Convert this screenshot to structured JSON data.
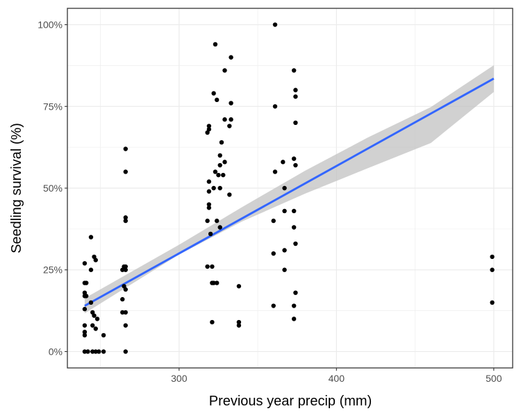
{
  "chart_data": {
    "type": "scatter",
    "title": "",
    "xlabel": "Previous year precip (mm)",
    "ylabel": "Seedling survival (%)",
    "xlim": [
      229,
      512
    ],
    "ylim": [
      -0.05,
      1.05
    ],
    "x_ticks": [
      {
        "value": 300,
        "label": "300"
      },
      {
        "value": 400,
        "label": "400"
      },
      {
        "value": 500,
        "label": "500"
      }
    ],
    "y_ticks": [
      {
        "value": 0,
        "label": "0%"
      },
      {
        "value": 0.25,
        "label": "25%"
      },
      {
        "value": 0.5,
        "label": "50%"
      },
      {
        "value": 0.75,
        "label": "75%"
      },
      {
        "value": 1.0,
        "label": "100%"
      }
    ],
    "grid": true,
    "legend": "none",
    "colors": {
      "points": "#000000",
      "trend_line": "#3366ff",
      "confidence_band": "#bebebe",
      "grid": "#ebebeb",
      "panel_border": "#333333"
    },
    "points": [
      {
        "x": 240,
        "y": 0.27
      },
      {
        "x": 240,
        "y": 0.21
      },
      {
        "x": 240,
        "y": 0.18
      },
      {
        "x": 240,
        "y": 0.17
      },
      {
        "x": 240,
        "y": 0.13
      },
      {
        "x": 240,
        "y": 0.08
      },
      {
        "x": 240,
        "y": 0.06
      },
      {
        "x": 240,
        "y": 0.05
      },
      {
        "x": 240,
        "y": 0.0
      },
      {
        "x": 241,
        "y": 0.21
      },
      {
        "x": 241,
        "y": 0.17
      },
      {
        "x": 242,
        "y": 0.0
      },
      {
        "x": 244,
        "y": 0.35
      },
      {
        "x": 244,
        "y": 0.25
      },
      {
        "x": 244,
        "y": 0.15
      },
      {
        "x": 245,
        "y": 0.12
      },
      {
        "x": 245,
        "y": 0.08
      },
      {
        "x": 245,
        "y": 0.0
      },
      {
        "x": 246,
        "y": 0.29
      },
      {
        "x": 246,
        "y": 0.11
      },
      {
        "x": 247,
        "y": 0.28
      },
      {
        "x": 247,
        "y": 0.07
      },
      {
        "x": 247,
        "y": 0.0
      },
      {
        "x": 248,
        "y": 0.1
      },
      {
        "x": 249,
        "y": 0.0
      },
      {
        "x": 252,
        "y": 0.05
      },
      {
        "x": 252,
        "y": 0.0
      },
      {
        "x": 264,
        "y": 0.25
      },
      {
        "x": 264,
        "y": 0.16
      },
      {
        "x": 264,
        "y": 0.12
      },
      {
        "x": 265,
        "y": 0.26
      },
      {
        "x": 265,
        "y": 0.2
      },
      {
        "x": 266,
        "y": 0.62
      },
      {
        "x": 266,
        "y": 0.55
      },
      {
        "x": 266,
        "y": 0.41
      },
      {
        "x": 266,
        "y": 0.4
      },
      {
        "x": 266,
        "y": 0.26
      },
      {
        "x": 266,
        "y": 0.25
      },
      {
        "x": 266,
        "y": 0.19
      },
      {
        "x": 266,
        "y": 0.12
      },
      {
        "x": 266,
        "y": 0.08
      },
      {
        "x": 266,
        "y": 0.0
      },
      {
        "x": 318,
        "y": 0.67
      },
      {
        "x": 318,
        "y": 0.4
      },
      {
        "x": 318,
        "y": 0.26
      },
      {
        "x": 319,
        "y": 0.69
      },
      {
        "x": 319,
        "y": 0.68
      },
      {
        "x": 319,
        "y": 0.52
      },
      {
        "x": 319,
        "y": 0.49
      },
      {
        "x": 319,
        "y": 0.45
      },
      {
        "x": 319,
        "y": 0.44
      },
      {
        "x": 320,
        "y": 0.36
      },
      {
        "x": 321,
        "y": 0.26
      },
      {
        "x": 321,
        "y": 0.21
      },
      {
        "x": 321,
        "y": 0.09
      },
      {
        "x": 322,
        "y": 0.79
      },
      {
        "x": 322,
        "y": 0.5
      },
      {
        "x": 322,
        "y": 0.21
      },
      {
        "x": 323,
        "y": 0.94
      },
      {
        "x": 323,
        "y": 0.55
      },
      {
        "x": 324,
        "y": 0.77
      },
      {
        "x": 324,
        "y": 0.4
      },
      {
        "x": 324,
        "y": 0.21
      },
      {
        "x": 325,
        "y": 0.54
      },
      {
        "x": 326,
        "y": 0.6
      },
      {
        "x": 326,
        "y": 0.57
      },
      {
        "x": 326,
        "y": 0.5
      },
      {
        "x": 326,
        "y": 0.38
      },
      {
        "x": 327,
        "y": 0.64
      },
      {
        "x": 328,
        "y": 0.54
      },
      {
        "x": 329,
        "y": 0.86
      },
      {
        "x": 329,
        "y": 0.71
      },
      {
        "x": 329,
        "y": 0.58
      },
      {
        "x": 332,
        "y": 0.69
      },
      {
        "x": 332,
        "y": 0.48
      },
      {
        "x": 333,
        "y": 0.9
      },
      {
        "x": 333,
        "y": 0.76
      },
      {
        "x": 333,
        "y": 0.71
      },
      {
        "x": 338,
        "y": 0.2
      },
      {
        "x": 338,
        "y": 0.09
      },
      {
        "x": 338,
        "y": 0.08
      },
      {
        "x": 360,
        "y": 0.4
      },
      {
        "x": 360,
        "y": 0.3
      },
      {
        "x": 360,
        "y": 0.14
      },
      {
        "x": 361,
        "y": 1.0
      },
      {
        "x": 361,
        "y": 0.75
      },
      {
        "x": 361,
        "y": 0.55
      },
      {
        "x": 366,
        "y": 0.58
      },
      {
        "x": 367,
        "y": 0.5
      },
      {
        "x": 367,
        "y": 0.43
      },
      {
        "x": 367,
        "y": 0.31
      },
      {
        "x": 367,
        "y": 0.25
      },
      {
        "x": 373,
        "y": 0.86
      },
      {
        "x": 373,
        "y": 0.59
      },
      {
        "x": 373,
        "y": 0.43
      },
      {
        "x": 373,
        "y": 0.38
      },
      {
        "x": 373,
        "y": 0.14
      },
      {
        "x": 373,
        "y": 0.1
      },
      {
        "x": 374,
        "y": 0.8
      },
      {
        "x": 374,
        "y": 0.78
      },
      {
        "x": 374,
        "y": 0.7
      },
      {
        "x": 374,
        "y": 0.57
      },
      {
        "x": 374,
        "y": 0.33
      },
      {
        "x": 374,
        "y": 0.18
      },
      {
        "x": 499,
        "y": 0.29
      },
      {
        "x": 499,
        "y": 0.25
      },
      {
        "x": 499,
        "y": 0.15
      }
    ],
    "trend_line": {
      "x": [
        240,
        500
      ],
      "y": [
        0.14,
        0.835
      ],
      "confidence_band": {
        "x": [
          240,
          300,
          340,
          380,
          420,
          460,
          500
        ],
        "lower": [
          0.117,
          0.297,
          0.398,
          0.483,
          0.561,
          0.638,
          0.794
        ],
        "upper": [
          0.163,
          0.327,
          0.442,
          0.553,
          0.655,
          0.748,
          0.876
        ]
      }
    }
  }
}
